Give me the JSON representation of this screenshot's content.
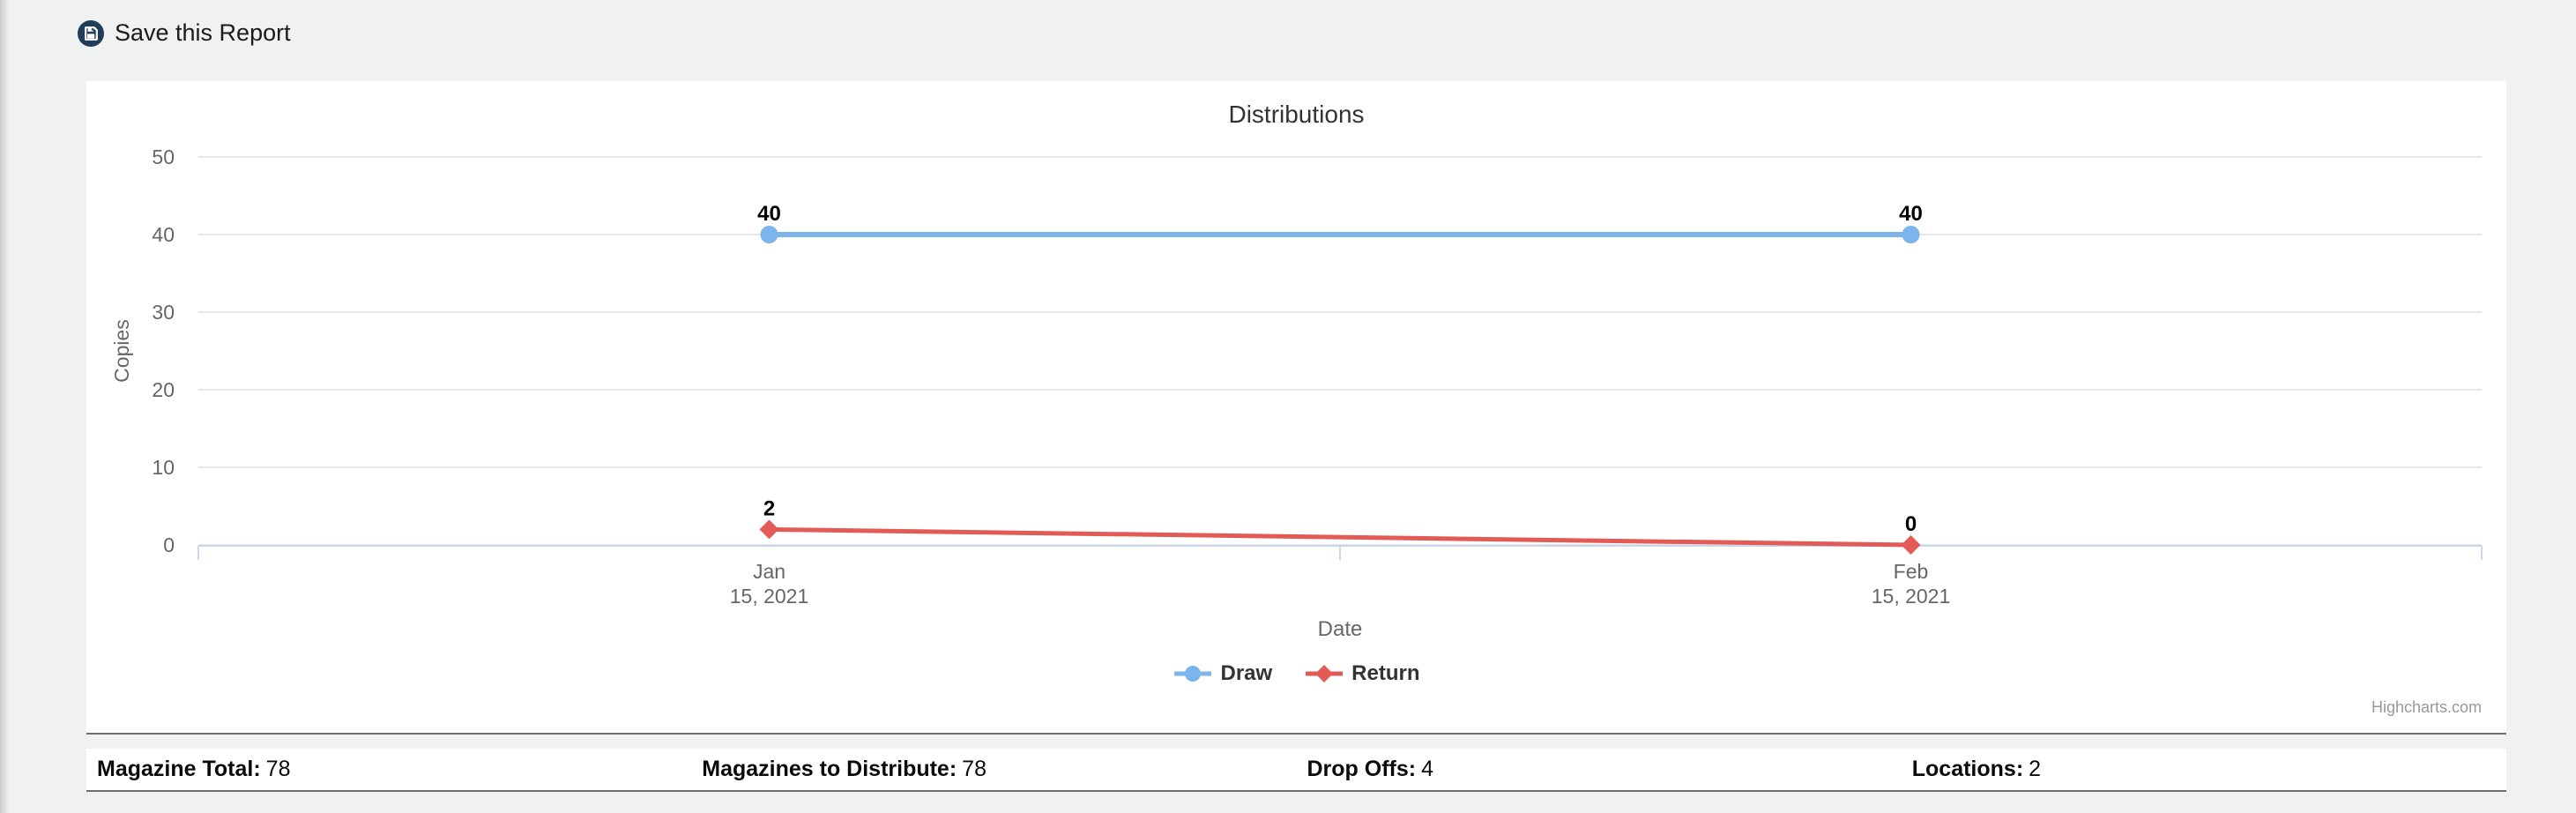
{
  "header": {
    "save_report_label": "Save this Report"
  },
  "chart_data": {
    "type": "line",
    "title": "Distributions",
    "xlabel": "Date",
    "ylabel": "Copies",
    "x": [
      "Jan 15, 2021",
      "Feb 15, 2021"
    ],
    "x_tick_lines": [
      [
        "Jan",
        "15, 2021"
      ],
      [
        "Feb",
        "15, 2021"
      ]
    ],
    "yticks": [
      0,
      10,
      20,
      30,
      40,
      50
    ],
    "ylim": [
      0,
      50
    ],
    "grid": true,
    "legend_position": "bottom",
    "series": [
      {
        "name": "Draw",
        "color": "#7cb5ec",
        "marker": "circle",
        "values": [
          40,
          40
        ]
      },
      {
        "name": "Return",
        "color": "#e25b56",
        "marker": "diamond",
        "values": [
          2,
          0
        ]
      }
    ],
    "credit": "Highcharts.com"
  },
  "stats": {
    "items": [
      {
        "label": "Magazine Total:",
        "value": "78"
      },
      {
        "label": "Magazines to Distribute:",
        "value": "78"
      },
      {
        "label": "Drop Offs:",
        "value": "4"
      },
      {
        "label": "Locations:",
        "value": "2"
      }
    ]
  },
  "colors": {
    "accent_navy": "#223d58",
    "series_blue": "#7cb5ec",
    "series_red": "#e25b56",
    "gridline": "#e6e6e6",
    "axis_line": "#ccd6eb",
    "axis_text": "#666666",
    "title_text": "#333333",
    "panel_rule": "#6f6f6f"
  }
}
